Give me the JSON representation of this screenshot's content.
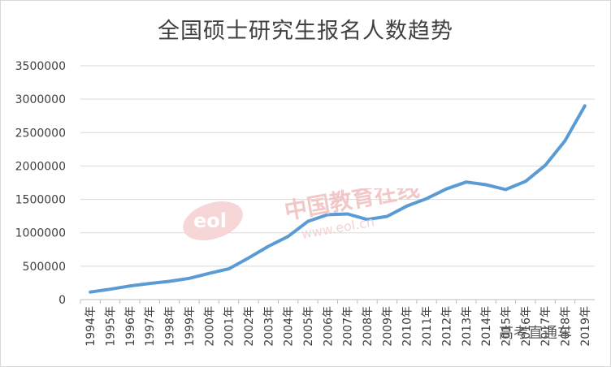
{
  "chart_data": {
    "type": "line",
    "title": "全国硕士研究生报名人数趋势",
    "categories": [
      "1994年",
      "1995年",
      "1996年",
      "1997年",
      "1998年",
      "1999年",
      "2000年",
      "2001年",
      "2002年",
      "2003年",
      "2004年",
      "2005年",
      "2006年",
      "2007年",
      "2008年",
      "2009年",
      "2010年",
      "2011年",
      "2012年",
      "2013年",
      "2014年",
      "2015年",
      "2016年",
      "2017年",
      "2018年",
      "2019年"
    ],
    "series": [
      {
        "values": [
          113000,
          155000,
          204000,
          242000,
          274000,
          319000,
          392000,
          460000,
          624000,
          797000,
          945000,
          1172000,
          1271000,
          1282000,
          1200000,
          1246000,
          1400000,
          1512000,
          1656000,
          1760000,
          1720000,
          1648000,
          1770000,
          2010000,
          2380000,
          2900000
        ]
      }
    ],
    "y_ticks": [
      "0",
      "500000",
      "1000000",
      "1500000",
      "2000000",
      "2500000",
      "3000000",
      "3500000"
    ],
    "ylim": [
      0,
      3500000
    ],
    "xlabel": "",
    "ylabel": "",
    "grid": true,
    "legend": "none",
    "line_color": "#5b9bd5"
  },
  "watermark": {
    "logo_text": "eol",
    "text": "中国教育在线",
    "url": "www.eol.cn"
  },
  "credit": "高考直通车"
}
